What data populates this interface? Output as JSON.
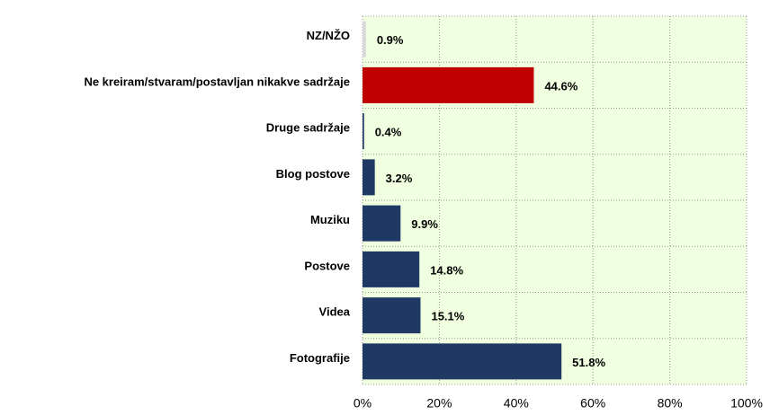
{
  "chart_data": {
    "type": "bar",
    "orientation": "horizontal",
    "categories": [
      "NZ/NŽO",
      "Ne kreiram/stvaram/postavljan nikakve sadržaje",
      "Druge sadržaje",
      "Blog postove",
      "Muziku",
      "Postove",
      "Videa",
      "Fotografije"
    ],
    "values": [
      0.9,
      44.6,
      0.4,
      3.2,
      9.9,
      14.8,
      15.1,
      51.8
    ],
    "value_labels": [
      "0.9%",
      "44.6%",
      "0.4%",
      "3.2%",
      "9.9%",
      "14.8%",
      "15.1%",
      "51.8%"
    ],
    "colors": [
      "#d9d9d9",
      "#c00000",
      "#1f3864",
      "#1f3864",
      "#1f3864",
      "#1f3864",
      "#1f3864",
      "#1f3864"
    ],
    "xlim": [
      0,
      100
    ],
    "xticks": [
      {
        "value": 0,
        "label": "0%"
      },
      {
        "value": 20,
        "label": "20%"
      },
      {
        "value": 40,
        "label": "40%"
      },
      {
        "value": 60,
        "label": "60%"
      },
      {
        "value": 80,
        "label": "80%"
      },
      {
        "value": 100,
        "label": "100%"
      }
    ],
    "grid": true
  }
}
